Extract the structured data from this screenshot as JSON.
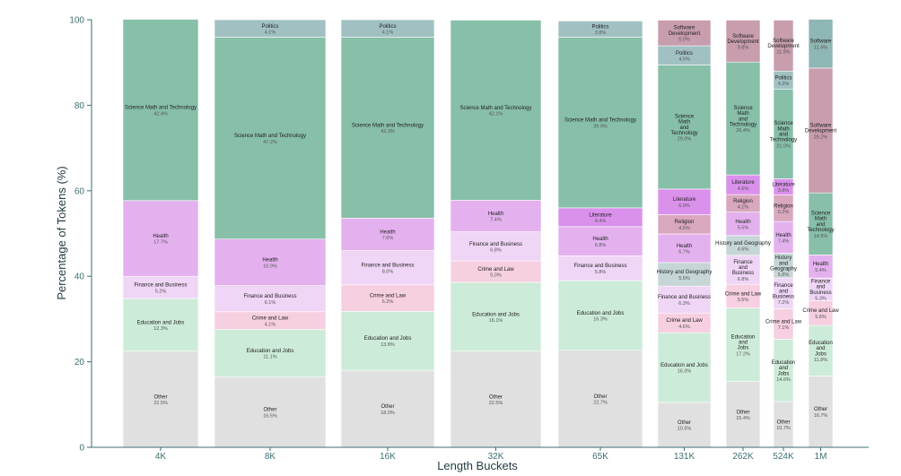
{
  "chart_data": {
    "type": "bar",
    "stacked": true,
    "xlabel": "Length Buckets",
    "ylabel": "Percentage of Tokens (%)",
    "ylim": [
      0,
      100
    ],
    "yticks": [
      "0",
      "20",
      "40",
      "60",
      "80",
      "100"
    ],
    "categories": [
      "4K",
      "8K",
      "16K",
      "32K",
      "65K",
      "131K",
      "262K",
      "524K",
      "1M"
    ],
    "colors": {
      "Other": "#e0e0e0",
      "Education and Jobs": "#cdebd9",
      "Crime and Law": "#f6cfe0",
      "Finance and Business": "#efd5f6",
      "History and Geography": "#c6d6d6",
      "Health": "#e4b1ef",
      "Religion": "#d9a7be",
      "Literature": "#da91ec",
      "Science Math and Technology": "#87bfa9",
      "Politics": "#a1c0c2",
      "Software Development": "#c89dae",
      "Software": "#8eb6b4"
    },
    "bars": [
      {
        "category": "4K",
        "segments": [
          {
            "name": "Other",
            "label": "Other",
            "pct": "22.5%",
            "value": 22.5
          },
          {
            "name": "Education and Jobs",
            "label": "Education and Jobs",
            "pct": "12.3%",
            "value": 12.3
          },
          {
            "name": "Finance and Business",
            "label": "Finance and Business",
            "pct": "5.2%",
            "value": 5.2
          },
          {
            "name": "Health",
            "label": "Health",
            "pct": "17.7%",
            "value": 17.7
          },
          {
            "name": "Science Math and Technology",
            "label": "Science Math and Technology",
            "pct": "42.4%",
            "value": 42.4
          }
        ]
      },
      {
        "category": "8K",
        "segments": [
          {
            "name": "Other",
            "label": "Other",
            "pct": "16.5%",
            "value": 16.5
          },
          {
            "name": "Education and Jobs",
            "label": "Education and Jobs",
            "pct": "11.1%",
            "value": 11.1
          },
          {
            "name": "Crime and Law",
            "label": "Crime and Law",
            "pct": "4.1%",
            "value": 4.1
          },
          {
            "name": "Finance and Business",
            "label": "Finance and Business",
            "pct": "6.1%",
            "value": 6.1
          },
          {
            "name": "Health",
            "label": "Health",
            "pct": "10.9%",
            "value": 10.9
          },
          {
            "name": "Science Math and Technology",
            "label": "Science Math and Technology",
            "pct": "47.2%",
            "value": 47.2
          },
          {
            "name": "Politics",
            "label": "Politics",
            "pct": "4.1%",
            "value": 4.1
          }
        ]
      },
      {
        "category": "16K",
        "segments": [
          {
            "name": "Other",
            "label": "Other",
            "pct": "18.0%",
            "value": 18.0
          },
          {
            "name": "Education and Jobs",
            "label": "Education and Jobs",
            "pct": "13.8%",
            "value": 13.8
          },
          {
            "name": "Crime and Law",
            "label": "Crime and Law",
            "pct": "6.2%",
            "value": 6.2
          },
          {
            "name": "Finance and Business",
            "label": "Finance and Business",
            "pct": "8.0%",
            "value": 8.0
          },
          {
            "name": "Health",
            "label": "Health",
            "pct": "7.6%",
            "value": 7.6
          },
          {
            "name": "Science Math and Technology",
            "label": "Science Math and Technology",
            "pct": "42.3%",
            "value": 42.3
          },
          {
            "name": "Politics",
            "label": "Politics",
            "pct": "4.1%",
            "value": 4.1
          }
        ]
      },
      {
        "category": "32K",
        "segments": [
          {
            "name": "Other",
            "label": "Other",
            "pct": "22.5%",
            "value": 22.5
          },
          {
            "name": "Education and Jobs",
            "label": "Education and Jobs",
            "pct": "16.1%",
            "value": 16.1
          },
          {
            "name": "Crime and Law",
            "label": "Crime and Law",
            "pct": "5.0%",
            "value": 5.0
          },
          {
            "name": "Finance and Business",
            "label": "Finance and Business",
            "pct": "6.8%",
            "value": 6.8
          },
          {
            "name": "Health",
            "label": "Health",
            "pct": "7.4%",
            "value": 7.4
          },
          {
            "name": "Science Math and Technology",
            "label": "Science Math and Technology",
            "pct": "42.1%",
            "value": 42.1
          }
        ]
      },
      {
        "category": "65K",
        "segments": [
          {
            "name": "Other",
            "label": "Other",
            "pct": "22.7%",
            "value": 22.7
          },
          {
            "name": "Education and Jobs",
            "label": "Education and Jobs",
            "pct": "16.3%",
            "value": 16.3
          },
          {
            "name": "Finance and Business",
            "label": "Finance and Business",
            "pct": "5.8%",
            "value": 5.8
          },
          {
            "name": "Health",
            "label": "Health",
            "pct": "6.8%",
            "value": 6.8
          },
          {
            "name": "Literature",
            "label": "Literature",
            "pct": "4.4%",
            "value": 4.4
          },
          {
            "name": "Science Math and Technology",
            "label": "Science Math and Technology",
            "pct": "39.9%",
            "value": 39.9
          },
          {
            "name": "Politics",
            "label": "Politics",
            "pct": "3.8%",
            "value": 3.8
          }
        ]
      },
      {
        "category": "131K",
        "segments": [
          {
            "name": "Other",
            "label": "Other",
            "pct": "10.5%",
            "value": 10.5
          },
          {
            "name": "Education and Jobs",
            "label": "Education and Jobs",
            "pct": "16.3%",
            "value": 16.3
          },
          {
            "name": "Crime and Law",
            "label": "Crime and Law",
            "pct": "4.6%",
            "value": 4.6
          },
          {
            "name": "Finance and Business",
            "label": "Finance and Business",
            "pct": "6.3%",
            "value": 6.3
          },
          {
            "name": "History and Geography",
            "label": "History and Geography",
            "pct": "5.5%",
            "value": 5.5
          },
          {
            "name": "Health",
            "label": "Health",
            "pct": "6.7%",
            "value": 6.7
          },
          {
            "name": "Religion",
            "label": "Religion",
            "pct": "4.5%",
            "value": 4.5
          },
          {
            "name": "Literature",
            "label": "Literature",
            "pct": "6.0%",
            "value": 6.0
          },
          {
            "name": "Science Math and Technology",
            "label": "Science\nMath\nand\nTechnology",
            "pct": "29.0%",
            "value": 29.0
          },
          {
            "name": "Politics",
            "label": "Politics",
            "pct": "4.5%",
            "value": 4.5
          },
          {
            "name": "Software Development",
            "label": "Software\nDevelopment",
            "pct": "6.0%",
            "value": 6.0
          }
        ]
      },
      {
        "category": "262K",
        "segments": [
          {
            "name": "Other",
            "label": "Other",
            "pct": "15.4%",
            "value": 15.4
          },
          {
            "name": "Education and Jobs",
            "label": "Education\nand\nJobs",
            "pct": "17.2%",
            "value": 17.2
          },
          {
            "name": "Crime and Law",
            "label": "Crime and Law",
            "pct": "5.5%",
            "value": 5.5
          },
          {
            "name": "Finance and Business",
            "label": "Finance\nand\nBusiness",
            "pct": "6.8%",
            "value": 6.8
          },
          {
            "name": "History and Geography",
            "label": "History and Geography",
            "pct": "4.6%",
            "value": 4.6
          },
          {
            "name": "Health",
            "label": "Health",
            "pct": "5.5%",
            "value": 5.5
          },
          {
            "name": "Religion",
            "label": "Religion",
            "pct": "4.1%",
            "value": 4.1
          },
          {
            "name": "Literature",
            "label": "Literature",
            "pct": "4.6%",
            "value": 4.6
          },
          {
            "name": "Science Math and Technology",
            "label": "Science\nMath\nand\nTechnology",
            "pct": "26.4%",
            "value": 26.4
          },
          {
            "name": "Software Development",
            "label": "Software\nDevelopment",
            "pct": "9.8%",
            "value": 9.8
          }
        ]
      },
      {
        "category": "524K",
        "segments": [
          {
            "name": "Other",
            "label": "Other",
            "pct": "10.7%",
            "value": 10.7
          },
          {
            "name": "Education and Jobs",
            "label": "Education\nand\nJobs",
            "pct": "14.6%",
            "value": 14.6
          },
          {
            "name": "Crime and Law",
            "label": "Crime and Law",
            "pct": "7.1%",
            "value": 7.1
          },
          {
            "name": "Finance and Business",
            "label": "Finance\nand\nBusiness",
            "pct": "7.2%",
            "value": 7.2
          },
          {
            "name": "History and Geography",
            "label": "History\nand\nGeography",
            "pct": "5.8%",
            "value": 5.8
          },
          {
            "name": "Health",
            "label": "Health",
            "pct": "7.4%",
            "value": 7.4
          },
          {
            "name": "Religion",
            "label": "Religion",
            "pct": "6.2%",
            "value": 6.2
          },
          {
            "name": "Literature",
            "label": "Literature",
            "pct": "3.8%",
            "value": 3.8
          },
          {
            "name": "Science Math and Technology",
            "label": "Science\nMath\nand\nTechnology",
            "pct": "21.0%",
            "value": 21.0
          },
          {
            "name": "Politics",
            "label": "Politics",
            "pct": "4.2%",
            "value": 4.2
          },
          {
            "name": "Software Development",
            "label": "Software\nDevelopment",
            "pct": "11.9%",
            "value": 11.9
          }
        ]
      },
      {
        "category": "1M",
        "segments": [
          {
            "name": "Other",
            "label": "Other",
            "pct": "16.7%",
            "value": 16.7
          },
          {
            "name": "Education and Jobs",
            "label": "Education\nand\nJobs",
            "pct": "11.8%",
            "value": 11.8
          },
          {
            "name": "Crime and Law",
            "label": "Crime and Law",
            "pct": "5.8%",
            "value": 5.8
          },
          {
            "name": "Finance and Business",
            "label": "Finance\nand\nBusiness",
            "pct": "5.3%",
            "value": 5.3
          },
          {
            "name": "Health",
            "label": "Health",
            "pct": "5.4%",
            "value": 5.4
          },
          {
            "name": "Science Math and Technology",
            "label": "Science\nMath\nand\nTechnology",
            "pct": "14.5%",
            "value": 14.5
          },
          {
            "name": "Software Development",
            "label": "Software\nDevelopment",
            "pct": "29.2%",
            "value": 29.2
          },
          {
            "name": "Software",
            "label": "Software",
            "pct": "11.4%",
            "value": 11.4
          }
        ]
      }
    ]
  }
}
